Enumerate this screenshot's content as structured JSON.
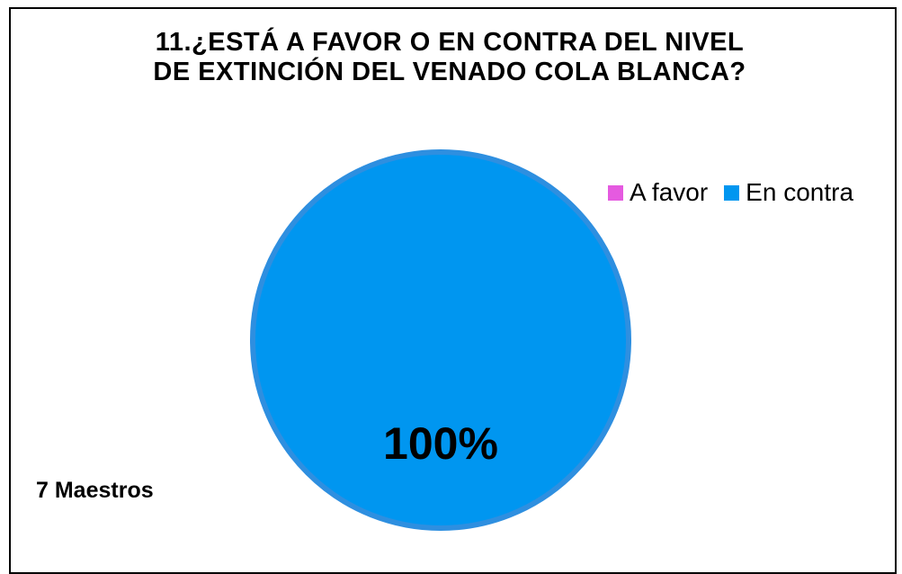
{
  "chart_data": {
    "type": "pie",
    "title": [
      "11.¿ESTÁ A FAVOR O EN CONTRA DEL NIVEL",
      "DE EXTINCIÓN DEL VENADO COLA BLANCA?"
    ],
    "categories": [
      "A favor",
      "En contra"
    ],
    "values": [
      0,
      100
    ],
    "data_labels": [
      "",
      "100%"
    ],
    "colors": [
      "#E55AE0",
      "#0096F0"
    ],
    "edge_color": "#2E8FE0",
    "legend_position": "top-right",
    "note": "7 Maestros"
  }
}
